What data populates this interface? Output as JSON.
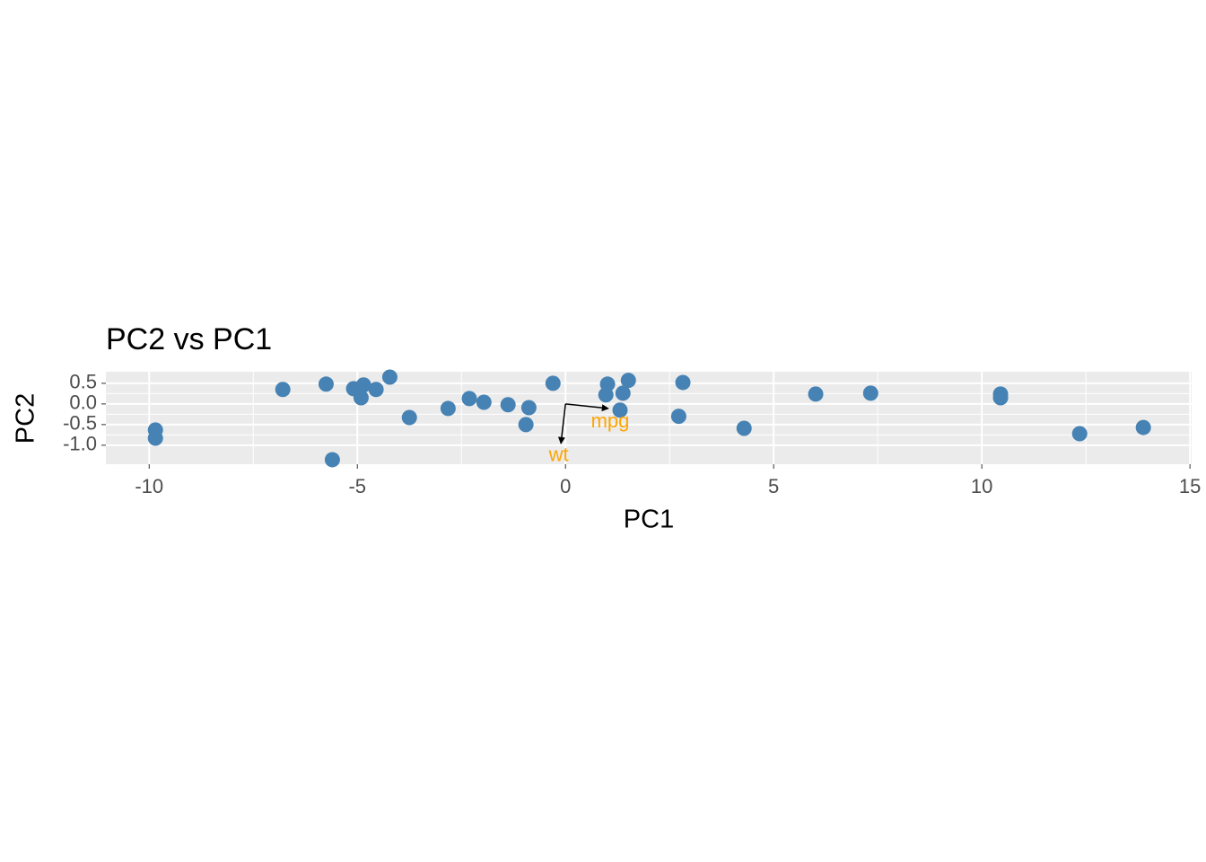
{
  "chart_data": {
    "type": "scatter",
    "title": "PC2 vs PC1",
    "x_label": "PC1",
    "y_label": "PC2",
    "color": "#4682b4",
    "x": [
      -6.79,
      -5.75,
      -5.09,
      -4.85,
      -4.91,
      -4.55,
      -4.22,
      -3.75,
      -5.6,
      -9.85,
      -9.85,
      -2.82,
      -2.31,
      -1.96,
      -1.38,
      -0.88,
      -0.95,
      -0.3,
      1.01,
      0.97,
      1.38,
      1.51,
      1.31,
      2.72,
      2.82,
      4.29,
      6.01,
      7.33,
      10.45,
      10.45,
      12.35,
      13.88
    ],
    "values": [
      0.35,
      0.48,
      0.37,
      0.46,
      0.15,
      0.35,
      0.65,
      -0.33,
      -1.35,
      -0.63,
      -0.83,
      -0.11,
      0.13,
      0.04,
      -0.02,
      -0.09,
      -0.5,
      0.5,
      0.48,
      0.22,
      0.26,
      0.57,
      -0.15,
      -0.3,
      0.52,
      -0.59,
      0.24,
      0.26,
      0.24,
      0.15,
      -0.72,
      -0.57
    ],
    "xlim": [
      -11.04,
      15.04
    ],
    "xticks": [
      -10,
      -5,
      0,
      5,
      10,
      15
    ],
    "ylim": [
      -1.46,
      0.78
    ],
    "yticks": [
      {
        "value": 0.5,
        "label": "0.5"
      },
      {
        "value": 0,
        "label": "0.0"
      },
      {
        "value": -0.5,
        "label": "-0.5"
      },
      {
        "value": -1,
        "label": "-1.0"
      }
    ],
    "grid": true,
    "arrows": [
      {
        "name": "mpg",
        "x": 1.03,
        "y": -0.11
      },
      {
        "name": "wt",
        "x": -0.11,
        "y": -0.96
      }
    ],
    "arrow_label_color": "#ffa500"
  }
}
